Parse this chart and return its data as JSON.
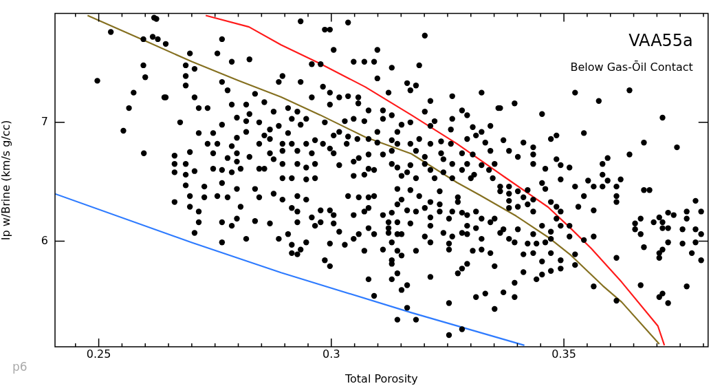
{
  "chart_data": {
    "type": "scatter",
    "xlabel": "Total Porosity",
    "ylabel": "Ip w/Brine (km/s g/cc)",
    "annotations": [
      "VAA55a",
      "Below Gas-Ōil Contact",
      "p6"
    ],
    "xlim": [
      0.2406,
      0.381
    ],
    "ylim": [
      5.112,
      7.916
    ],
    "xticks": [
      {
        "value": 0.245,
        "label": null
      },
      0.25,
      {
        "value": 0.255,
        "label": null
      },
      {
        "value": 0.26,
        "label": null
      },
      {
        "value": 0.265,
        "label": null
      },
      {
        "value": 0.27,
        "label": null
      },
      {
        "value": 0.275,
        "label": null
      },
      {
        "value": 0.28,
        "label": null
      },
      {
        "value": 0.285,
        "label": null
      },
      {
        "value": 0.29,
        "label": null
      },
      {
        "value": 0.295,
        "label": null
      },
      0.3,
      {
        "value": 0.305,
        "label": null
      },
      {
        "value": 0.31,
        "label": null
      },
      {
        "value": 0.315,
        "label": null
      },
      {
        "value": 0.32,
        "label": null
      },
      {
        "value": 0.325,
        "label": null
      },
      {
        "value": 0.33,
        "label": null
      },
      {
        "value": 0.335,
        "label": null
      },
      {
        "value": 0.34,
        "label": null
      },
      {
        "value": 0.345,
        "label": null
      },
      0.35,
      {
        "value": 0.355,
        "label": null
      },
      {
        "value": 0.36,
        "label": null
      },
      {
        "value": 0.365,
        "label": null
      },
      {
        "value": 0.37,
        "label": null
      },
      {
        "value": 0.375,
        "label": null
      },
      {
        "value": 0.38,
        "label": null
      }
    ],
    "yticks": [
      6,
      7
    ],
    "grid": false,
    "legend": false,
    "series": [
      {
        "type": "scatter",
        "color": "#000000",
        "marker": "circle",
        "x": [
          0.2497,
          0.2553,
          0.2526,
          0.2575,
          0.2596,
          0.26,
          0.2597,
          0.2596,
          0.2627,
          0.2641,
          0.2619,
          0.2565,
          0.2644,
          0.2675,
          0.2687,
          0.2687,
          0.2687,
          0.2696,
          0.2706,
          0.2706,
          0.2715,
          0.2715,
          0.2734,
          0.2765,
          0.2755,
          0.2786,
          0.2824,
          0.2765,
          0.2777,
          0.2786,
          0.2817,
          0.2824,
          0.2836,
          0.2856,
          0.2876,
          0.2765,
          0.2797,
          0.2817,
          0.2845,
          0.2746,
          0.2734,
          0.2755,
          0.2786,
          0.2797,
          0.2817,
          0.2856,
          0.2868,
          0.2868,
          0.2663,
          0.2663,
          0.2663,
          0.2687,
          0.2687,
          0.2696,
          0.2706,
          0.2746,
          0.2777,
          0.2797,
          0.2797,
          0.2824,
          0.2845,
          0.2868,
          0.2876,
          0.2856,
          0.2746,
          0.2786,
          0.2805,
          0.2765,
          0.2845,
          0.2624,
          0.2616,
          0.2644,
          0.2663,
          0.2696,
          0.2715,
          0.2715,
          0.2706,
          0.2765,
          0.2765,
          0.2786,
          0.2797,
          0.2805,
          0.2836,
          0.2868,
          0.2817,
          0.2887,
          0.2696,
          0.2727,
          0.2755,
          0.2777,
          0.2845,
          0.2687,
          0.2727,
          0.2765,
          0.2797,
          0.2836,
          0.2876,
          0.2934,
          0.2986,
          0.2997,
          0.3036,
          0.3201,
          0.3005,
          0.3099,
          0.3048,
          0.3071,
          0.3092,
          0.313,
          0.3189,
          0.3099,
          0.3163,
          0.3182,
          0.317,
          0.3323,
          0.2977,
          0.2958,
          0.2934,
          0.2887,
          0.2895,
          0.2982,
          0.2997,
          0.3017,
          0.3036,
          0.2958,
          0.3058,
          0.3058,
          0.2997,
          0.3123,
          0.3213,
          0.3201,
          0.326,
          0.3281,
          0.3292,
          0.3359,
          0.308,
          0.3111,
          0.313,
          0.3222,
          0.326,
          0.2907,
          0.2927,
          0.2946,
          0.2915,
          0.2934,
          0.2986,
          0.3029,
          0.3048,
          0.3071,
          0.3111,
          0.3151,
          0.317,
          0.3213,
          0.3304,
          0.3342,
          0.2887,
          0.2907,
          0.3005,
          0.3017,
          0.3099,
          0.3142,
          0.3257,
          0.3323,
          0.3311,
          0.3036,
          0.3056,
          0.308,
          0.313,
          0.3189,
          0.2895,
          0.2915,
          0.2946,
          0.2965,
          0.2982,
          0.3033,
          0.3099,
          0.3142,
          0.317,
          0.3213,
          0.3236,
          0.3257,
          0.3292,
          0.3331,
          0.2895,
          0.2927,
          0.2958,
          0.2997,
          0.3005,
          0.308,
          0.3111,
          0.313,
          0.3182,
          0.3201,
          0.3236,
          0.3281,
          0.3304,
          0.3342,
          0.2895,
          0.2927,
          0.2965,
          0.3017,
          0.3048,
          0.3059,
          0.313,
          0.317,
          0.3201,
          0.3241,
          0.326,
          0.3292,
          0.3323,
          0.3351,
          0.2946,
          0.308,
          0.3092,
          0.3142,
          0.3163,
          0.3213,
          0.3241,
          0.3281,
          0.3307,
          0.3339,
          0.2895,
          0.2915,
          0.2946,
          0.2965,
          0.3048,
          0.3071,
          0.3151,
          0.3182,
          0.3222,
          0.326,
          0.33,
          0.3347,
          0.2907,
          0.2915,
          0.2915,
          0.2927,
          0.2934,
          0.2946,
          0.2986,
          0.2997,
          0.2997,
          0.3029,
          0.3048,
          0.3059,
          0.3071,
          0.308,
          0.3092,
          0.3092,
          0.3111,
          0.313,
          0.313,
          0.313,
          0.3142,
          0.3151,
          0.3142,
          0.313,
          0.3151,
          0.3163,
          0.3163,
          0.3142,
          0.3182,
          0.3182,
          0.3213,
          0.3213,
          0.3201,
          0.3253,
          0.3253,
          0.3281,
          0.3272,
          0.3281,
          0.3292,
          0.3253,
          0.3253,
          0.3304,
          0.3323,
          0.3342,
          0.3351,
          0.3311,
          0.3331,
          0.3351,
          0.3311,
          0.3292,
          0.3241,
          0.326,
          0.3281,
          0.3292,
          0.3323,
          0.3363,
          0.3123,
          0.3123,
          0.3123,
          0.3142,
          0.3151,
          0.317,
          0.3142,
          0.313,
          0.3111,
          0.308,
          0.3048,
          0.3017,
          0.3005,
          0.2977,
          0.2965,
          0.2958,
          0.2927,
          0.2927,
          0.2915,
          0.2895,
          0.2927,
          0.2946,
          0.2977,
          0.2997,
          0.3005,
          0.3036,
          0.3059,
          0.308,
          0.3071,
          0.308,
          0.3092,
          0.3142,
          0.3151,
          0.3163,
          0.3182,
          0.317,
          0.3142,
          0.3189,
          0.3201,
          0.3213,
          0.3233,
          0.3233,
          0.3233,
          0.3213,
          0.3213,
          0.326,
          0.3272,
          0.3272,
          0.3253,
          0.3281,
          0.3292,
          0.3311,
          0.3323,
          0.3342,
          0.3351,
          0.3524,
          0.3575,
          0.3641,
          0.3712,
          0.3394,
          0.3453,
          0.3543,
          0.3472,
          0.3484,
          0.3672,
          0.3743,
          0.3641,
          0.3594,
          0.3583,
          0.3583,
          0.3622,
          0.3363,
          0.337,
          0.3413,
          0.3434,
          0.3434,
          0.3434,
          0.3484,
          0.3493,
          0.3512,
          0.346,
          0.3401,
          0.3382,
          0.3552,
          0.3594,
          0.3493,
          0.3524,
          0.3564,
          0.3583,
          0.3613,
          0.3613,
          0.3613,
          0.3543,
          0.3531,
          0.3564,
          0.3564,
          0.3543,
          0.3512,
          0.3512,
          0.3524,
          0.3524,
          0.3613,
          0.3564,
          0.3613,
          0.3672,
          0.3684,
          0.3653,
          0.3653,
          0.3665,
          0.3665,
          0.3672,
          0.3693,
          0.3705,
          0.3712,
          0.3712,
          0.3724,
          0.3736,
          0.3724,
          0.3724,
          0.3712,
          0.3705,
          0.3705,
          0.3755,
          0.3764,
          0.3764,
          0.3783,
          0.3783,
          0.3795,
          0.3795,
          0.3755,
          0.3783,
          0.3775,
          0.3795,
          0.3665,
          0.3764,
          0.3712,
          0.3705,
          0.3724,
          0.337,
          0.3394,
          0.3394,
          0.3413,
          0.3441,
          0.3453,
          0.3472,
          0.3493,
          0.3453,
          0.3472,
          0.3493,
          0.3413,
          0.3434,
          0.3422,
          0.3441,
          0.346,
          0.3472,
          0.3472,
          0.3453,
          0.3434,
          0.3394,
          0.3382,
          0.3401,
          0.337,
          0.3484,
          0.3493,
          0.3484,
          0.3493,
          0.3472,
          0.3382,
          0.3401,
          0.3422,
          0.3434,
          0.3382,
          0.3413,
          0.3434,
          0.3363,
          0.3382,
          0.3401,
          0.3363,
          0.3382,
          0.3422,
          0.3453,
          0.346
        ],
        "values": [
          7.35,
          6.93,
          7.76,
          7.25,
          7.48,
          7.38,
          6.74,
          7.7,
          7.7,
          7.21,
          7.88,
          7.12,
          7.21,
          7.0,
          7.48,
          7.39,
          7.31,
          7.58,
          7.45,
          7.21,
          7.12,
          6.91,
          7.12,
          7.7,
          7.58,
          7.51,
          7.53,
          7.34,
          7.27,
          7.15,
          7.15,
          7.07,
          7.24,
          7.17,
          7.09,
          6.98,
          7.04,
          7.01,
          7.0,
          6.91,
          6.82,
          6.82,
          6.8,
          6.87,
          6.92,
          6.89,
          6.94,
          6.86,
          6.72,
          6.65,
          6.58,
          6.65,
          6.56,
          6.75,
          6.59,
          6.74,
          6.7,
          6.74,
          6.67,
          6.71,
          6.82,
          6.74,
          6.69,
          6.61,
          6.61,
          6.58,
          6.61,
          6.6,
          6.61,
          7.87,
          7.72,
          7.66,
          6.33,
          6.29,
          6.25,
          6.16,
          6.07,
          5.99,
          6.16,
          6.13,
          6.19,
          6.29,
          6.17,
          6.15,
          6.02,
          6.02,
          6.38,
          6.37,
          6.38,
          6.37,
          6.37,
          6.47,
          6.46,
          6.49,
          6.44,
          6.44,
          6.4,
          7.85,
          7.78,
          7.78,
          7.84,
          7.73,
          7.61,
          7.61,
          7.51,
          7.51,
          7.51,
          7.46,
          7.48,
          7.37,
          7.33,
          7.31,
          7.27,
          7.25,
          7.49,
          7.49,
          7.34,
          7.34,
          7.39,
          7.3,
          7.25,
          7.21,
          7.22,
          7.21,
          7.21,
          7.16,
          7.15,
          7.25,
          7.18,
          7.09,
          7.22,
          7.1,
          7.06,
          7.12,
          7.1,
          7.1,
          7.06,
          7.01,
          7.03,
          7.12,
          7.09,
          7.03,
          7.03,
          6.98,
          7.0,
          7.01,
          7.03,
          7.01,
          7.03,
          6.98,
          7.0,
          6.97,
          6.96,
          6.97,
          6.97,
          6.91,
          6.89,
          6.92,
          6.92,
          6.92,
          6.94,
          6.92,
          6.89,
          6.88,
          6.86,
          6.86,
          6.85,
          6.86,
          6.82,
          6.82,
          6.82,
          6.85,
          6.82,
          6.82,
          6.83,
          6.82,
          6.82,
          6.82,
          6.84,
          6.82,
          6.86,
          6.83,
          6.76,
          6.76,
          6.74,
          6.78,
          6.74,
          6.73,
          6.73,
          6.76,
          6.76,
          6.71,
          6.74,
          6.74,
          6.73,
          6.76,
          6.65,
          6.65,
          6.65,
          6.64,
          6.67,
          6.7,
          6.65,
          6.64,
          6.65,
          6.69,
          6.65,
          6.65,
          6.64,
          6.65,
          6.62,
          6.61,
          6.6,
          6.62,
          6.58,
          6.6,
          6.58,
          6.6,
          6.56,
          6.6,
          6.53,
          6.53,
          6.52,
          6.53,
          6.55,
          6.56,
          6.55,
          6.53,
          6.53,
          6.53,
          6.53,
          6.53,
          6.06,
          5.97,
          5.9,
          5.89,
          5.93,
          5.99,
          5.84,
          5.79,
          5.98,
          5.97,
          6.02,
          6.06,
          5.92,
          5.68,
          5.54,
          6.06,
          5.93,
          5.99,
          5.84,
          5.81,
          5.92,
          5.88,
          5.73,
          5.68,
          5.59,
          5.63,
          5.44,
          5.34,
          5.34,
          5.92,
          5.7,
          5.99,
          6.04,
          5.48,
          5.21,
          5.26,
          5.73,
          5.77,
          5.81,
          5.93,
          5.98,
          5.92,
          5.93,
          5.9,
          5.79,
          5.53,
          5.56,
          5.43,
          6.11,
          6.13,
          6.07,
          6.04,
          6.07,
          6.06,
          6.02,
          6.07,
          6.16,
          6.11,
          6.07,
          6.06,
          6.06,
          6.15,
          6.16,
          6.24,
          6.22,
          6.11,
          6.22,
          6.08,
          6.15,
          6.16,
          6.13,
          6.2,
          6.16,
          6.25,
          6.28,
          6.35,
          6.38,
          6.35,
          6.26,
          6.26,
          6.22,
          6.38,
          6.37,
          6.37,
          6.25,
          6.28,
          6.38,
          6.31,
          6.35,
          6.26,
          6.25,
          6.43,
          6.44,
          6.38,
          6.28,
          6.33,
          6.42,
          6.31,
          6.25,
          6.2,
          6.13,
          6.25,
          6.33,
          6.37,
          6.19,
          6.24,
          6.22,
          6.25,
          6.19,
          6.16,
          6.19,
          7.25,
          7.18,
          7.27,
          7.04,
          7.16,
          7.07,
          6.91,
          6.86,
          6.89,
          6.83,
          6.79,
          6.73,
          6.7,
          6.65,
          6.56,
          6.52,
          7.12,
          6.85,
          6.83,
          6.79,
          6.73,
          6.65,
          6.69,
          6.64,
          6.62,
          6.61,
          6.71,
          6.76,
          6.51,
          6.51,
          6.52,
          6.46,
          6.46,
          6.46,
          6.46,
          6.38,
          6.33,
          6.38,
          6.29,
          6.26,
          6.04,
          6.01,
          6.13,
          6.04,
          5.89,
          5.8,
          5.86,
          5.62,
          5.5,
          6.43,
          6.43,
          6.15,
          6.1,
          6.19,
          6.06,
          5.95,
          6.16,
          6.2,
          6.16,
          6.11,
          6.24,
          6.22,
          6.11,
          5.99,
          5.93,
          5.9,
          5.86,
          6.1,
          6.25,
          6.19,
          6.34,
          6.1,
          6.25,
          6.06,
          5.98,
          5.99,
          5.9,
          5.84,
          5.63,
          5.62,
          5.56,
          5.53,
          5.48,
          5.57,
          5.65,
          5.53,
          5.74,
          5.68,
          5.72,
          5.75,
          5.77,
          5.83,
          5.9,
          5.84,
          5.89,
          5.9,
          5.98,
          5.98,
          5.99,
          6.02,
          6.08,
          6.13,
          6.06,
          5.99,
          6.02,
          6.1,
          6.1,
          6.29,
          6.25,
          6.19,
          6.13,
          6.33,
          6.28,
          6.29,
          6.31,
          6.25,
          6.34,
          6.37,
          6.35,
          6.42,
          6.4,
          6.42,
          6.46,
          6.46,
          6.43,
          6.49,
          6.44
        ]
      },
      {
        "type": "line",
        "color": "#857020",
        "marker": "none",
        "x": [
          0.2476,
          0.2597,
          0.27,
          0.2799,
          0.2892,
          0.2976,
          0.3073,
          0.3172,
          0.327,
          0.3319,
          0.3397,
          0.3466,
          0.3515,
          0.3584,
          0.3624,
          0.3705
        ],
        "values": [
          7.899,
          7.691,
          7.511,
          7.354,
          7.213,
          7.062,
          6.876,
          6.736,
          6.494,
          6.388,
          6.213,
          6.034,
          5.882,
          5.624,
          5.489,
          5.135
        ]
      },
      {
        "type": "line",
        "color": "#ff1a1a",
        "marker": "none",
        "x": [
          0.273,
          0.2823,
          0.2892,
          0.2976,
          0.3073,
          0.3172,
          0.327,
          0.3373,
          0.3466,
          0.3515,
          0.3559,
          0.3624,
          0.3702,
          0.3716
        ],
        "values": [
          7.899,
          7.803,
          7.652,
          7.494,
          7.298,
          7.062,
          6.82,
          6.539,
          6.287,
          6.107,
          5.938,
          5.657,
          5.287,
          5.124
        ]
      },
      {
        "type": "line",
        "color": "#2e7bff",
        "marker": "none",
        "x": [
          0.2406,
          0.27,
          0.2892,
          0.3172,
          0.3415
        ],
        "values": [
          6.399,
          5.989,
          5.736,
          5.399,
          5.124
        ]
      }
    ]
  }
}
